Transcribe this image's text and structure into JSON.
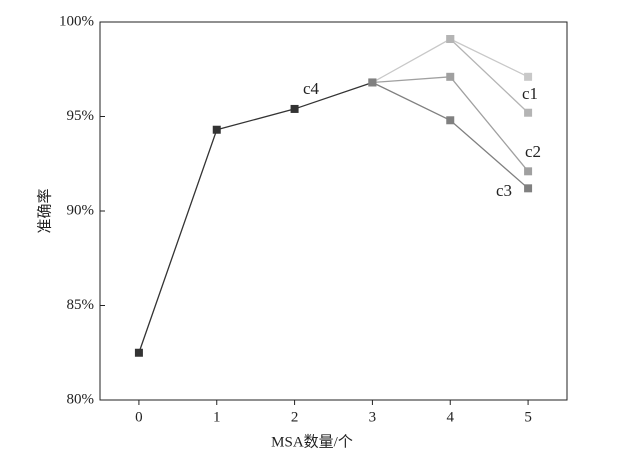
{
  "chart_data": {
    "type": "line",
    "x_label": "MSA数量/个",
    "y_label": "准确率",
    "x": [
      0,
      1,
      2,
      3,
      4,
      5
    ],
    "series": [
      {
        "color": "#333333",
        "values": [
          82.5,
          94.3,
          95.4,
          96.8,
          null,
          null
        ]
      },
      {
        "color": "#c8c8c8",
        "values": [
          null,
          null,
          null,
          96.8,
          99.1,
          97.1
        ]
      },
      {
        "color": "#b4b4b4",
        "values": [
          null,
          null,
          null,
          null,
          99.1,
          95.2
        ]
      },
      {
        "color": "#a0a0a0",
        "values": [
          null,
          null,
          null,
          96.8,
          97.1,
          92.1
        ]
      },
      {
        "color": "#808080",
        "values": [
          null,
          null,
          null,
          96.8,
          94.8,
          91.2
        ]
      }
    ],
    "annotations": [
      "c1",
      "c2",
      "c3",
      "c4"
    ],
    "xlim": [
      -0.5,
      5.5
    ],
    "xticks": [
      0,
      1,
      2,
      3,
      4,
      5
    ],
    "ylim": [
      80,
      100
    ],
    "yticks": [
      {
        "value": 80,
        "label": "80%"
      },
      {
        "value": 85,
        "label": "85%"
      },
      {
        "value": 90,
        "label": "90%"
      },
      {
        "value": 95,
        "label": "95%"
      },
      {
        "value": 100,
        "label": "100%"
      }
    ],
    "grid": false
  }
}
